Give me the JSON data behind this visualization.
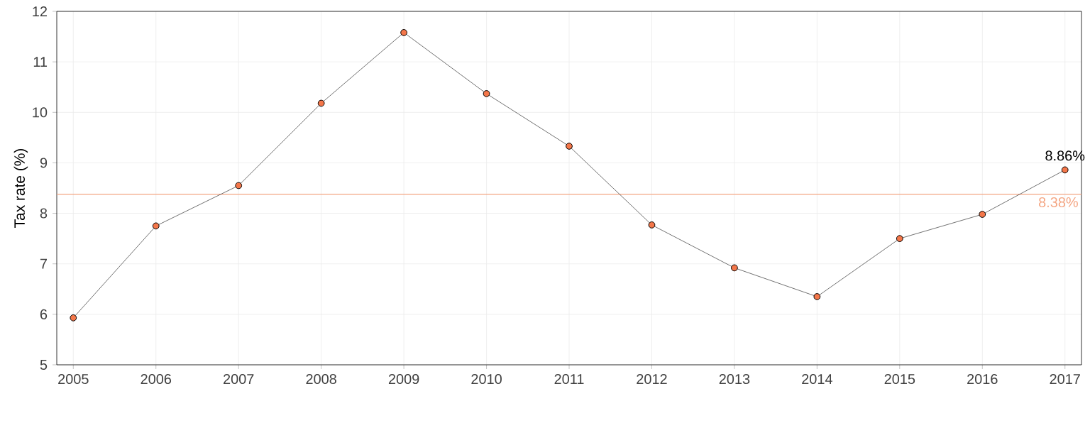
{
  "chart_data": {
    "type": "line",
    "ylabel": "Tax rate (%)",
    "x": [
      2005,
      2006,
      2007,
      2008,
      2009,
      2010,
      2011,
      2012,
      2013,
      2014,
      2015,
      2016,
      2017
    ],
    "series": [
      {
        "color": "#f4774a",
        "values": [
          5.93,
          7.75,
          8.55,
          10.18,
          11.58,
          10.37,
          9.33,
          7.77,
          6.92,
          6.35,
          7.5,
          7.98,
          8.86
        ]
      }
    ],
    "xlim": [
      2004.8,
      2017.2
    ],
    "xticks": [
      2005,
      2006,
      2007,
      2008,
      2009,
      2010,
      2011,
      2012,
      2013,
      2014,
      2015,
      2016,
      2017
    ],
    "ylim": [
      5,
      12
    ],
    "yticks": [
      5,
      6,
      7,
      8,
      9,
      10,
      11,
      12
    ],
    "ref_lines": [
      {
        "axis": "y",
        "value": 8.38,
        "label": "8.38%",
        "color": "#f4a582"
      }
    ],
    "annotations": [
      {
        "text": "8.86%",
        "x": 2017,
        "y": 8.86
      }
    ],
    "grid": true,
    "marker": "circle"
  }
}
